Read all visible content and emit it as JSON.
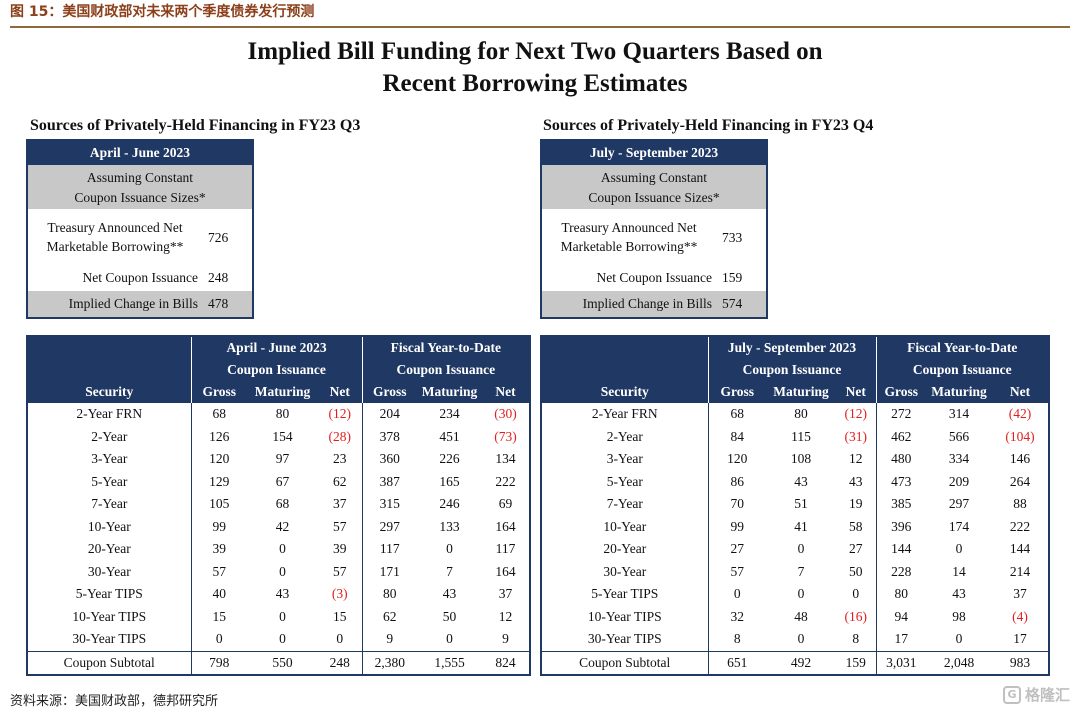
{
  "figure_title": "图 15：美国财政部对未来两个季度债券发行预测",
  "main_title_line1": "Implied Bill Funding for Next Two Quarters Based on",
  "main_title_line2": "Recent Borrowing Estimates",
  "left": {
    "subtitle": "Sources of Privately-Held Financing in FY23 Q3",
    "summary": {
      "period": "April - June 2023",
      "assume_line1": "Assuming Constant",
      "assume_line2": "Coupon Issuance Sizes*",
      "borrow_line1": "Treasury Announced Net",
      "borrow_line2": "Marketable Borrowing**",
      "borrow_value": "726",
      "coupon_label": "Net Coupon Issuance",
      "coupon_value": "248",
      "implied_label": "Implied Change in Bills",
      "implied_value": "478"
    },
    "table": {
      "period_header": "April - June 2023",
      "coupon_issuance": "Coupon Issuance",
      "fytd_header": "Fiscal Year-to-Date",
      "fytd_coupon": "Coupon Issuance",
      "security_header": "Security",
      "col_gross": "Gross",
      "col_maturing": "Maturing",
      "col_net": "Net",
      "rows": [
        [
          "2-Year FRN",
          "68",
          "80",
          "(12)",
          "204",
          "234",
          "(30)"
        ],
        [
          "2-Year",
          "126",
          "154",
          "(28)",
          "378",
          "451",
          "(73)"
        ],
        [
          "3-Year",
          "120",
          "97",
          "23",
          "360",
          "226",
          "134"
        ],
        [
          "5-Year",
          "129",
          "67",
          "62",
          "387",
          "165",
          "222"
        ],
        [
          "7-Year",
          "105",
          "68",
          "37",
          "315",
          "246",
          "69"
        ],
        [
          "10-Year",
          "99",
          "42",
          "57",
          "297",
          "133",
          "164"
        ],
        [
          "20-Year",
          "39",
          "0",
          "39",
          "117",
          "0",
          "117"
        ],
        [
          "30-Year",
          "57",
          "0",
          "57",
          "171",
          "7",
          "164"
        ],
        [
          "5-Year TIPS",
          "40",
          "43",
          "(3)",
          "80",
          "43",
          "37"
        ],
        [
          "10-Year TIPS",
          "15",
          "0",
          "15",
          "62",
          "50",
          "12"
        ],
        [
          "30-Year TIPS",
          "0",
          "0",
          "0",
          "9",
          "0",
          "9"
        ]
      ],
      "subtotal": [
        "Coupon Subtotal",
        "798",
        "550",
        "248",
        "2,380",
        "1,555",
        "824"
      ]
    }
  },
  "right": {
    "subtitle": "Sources of Privately-Held Financing in FY23 Q4",
    "summary": {
      "period": "July - September 2023",
      "assume_line1": "Assuming Constant",
      "assume_line2": "Coupon Issuance Sizes*",
      "borrow_line1": "Treasury Announced Net",
      "borrow_line2": "Marketable Borrowing**",
      "borrow_value": "733",
      "coupon_label": "Net Coupon Issuance",
      "coupon_value": "159",
      "implied_label": "Implied Change in Bills",
      "implied_value": "574"
    },
    "table": {
      "period_header": "July - September 2023",
      "coupon_issuance": "Coupon Issuance",
      "fytd_header": "Fiscal Year-to-Date",
      "fytd_coupon": "Coupon Issuance",
      "security_header": "Security",
      "col_gross": "Gross",
      "col_maturing": "Maturing",
      "col_net": "Net",
      "rows": [
        [
          "2-Year FRN",
          "68",
          "80",
          "(12)",
          "272",
          "314",
          "(42)"
        ],
        [
          "2-Year",
          "84",
          "115",
          "(31)",
          "462",
          "566",
          "(104)"
        ],
        [
          "3-Year",
          "120",
          "108",
          "12",
          "480",
          "334",
          "146"
        ],
        [
          "5-Year",
          "86",
          "43",
          "43",
          "473",
          "209",
          "264"
        ],
        [
          "7-Year",
          "70",
          "51",
          "19",
          "385",
          "297",
          "88"
        ],
        [
          "10-Year",
          "99",
          "41",
          "58",
          "396",
          "174",
          "222"
        ],
        [
          "20-Year",
          "27",
          "0",
          "27",
          "144",
          "0",
          "144"
        ],
        [
          "30-Year",
          "57",
          "7",
          "50",
          "228",
          "14",
          "214"
        ],
        [
          "5-Year TIPS",
          "0",
          "0",
          "0",
          "80",
          "43",
          "37"
        ],
        [
          "10-Year TIPS",
          "32",
          "48",
          "(16)",
          "94",
          "98",
          "(4)"
        ],
        [
          "30-Year TIPS",
          "8",
          "0",
          "8",
          "17",
          "0",
          "17"
        ]
      ],
      "subtotal": [
        "Coupon Subtotal",
        "651",
        "492",
        "159",
        "3,031",
        "2,048",
        "983"
      ]
    }
  },
  "source": "资料来源：美国财政部，德邦研究所",
  "logo_text": "格隆汇",
  "colors": {
    "header_navy": "#1f3864",
    "gray_band": "#c8c8c8",
    "negative_red": "#e02020",
    "figure_title": "#8b3f1a"
  }
}
